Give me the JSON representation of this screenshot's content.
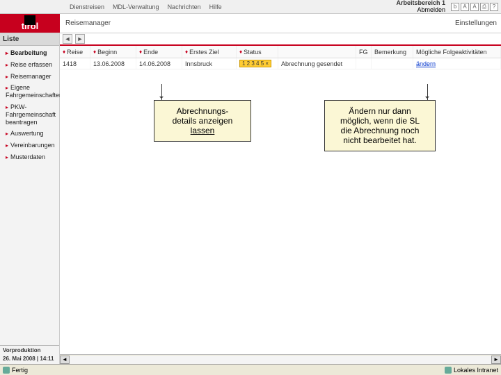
{
  "topnav": {
    "items": [
      "Dienstreisen",
      "MDL-Verwaltung",
      "Nachrichten",
      "Hilfe"
    ],
    "workspace_line1": "Arbeitsbereich 1",
    "workspace_line2": "Abmelden",
    "settings": "Einstellungen"
  },
  "logo": {
    "text": "tirol"
  },
  "breadcrumb": {
    "text": "Reisemanager"
  },
  "sidebar": {
    "header": "Liste",
    "items": [
      "Bearbeitung",
      "Reise erfassen",
      "Reisemanager",
      "Eigene Fahrgemeinschaften",
      "PKW-Fahrgemeinschaft beantragen",
      "Auswertung",
      "Vereinbarungen",
      "Musterdaten"
    ],
    "footer1": "Vorproduktion",
    "footer2": "26. Mai 2008 | 14:11"
  },
  "table": {
    "columns": {
      "reise": "Reise",
      "beginn": "Beginn",
      "ende": "Ende",
      "ziel": "Erstes Ziel",
      "status": "Status",
      "fg": "FG",
      "bem": "Bemerkung",
      "activ": "Mögliche Folgeaktivitäten"
    },
    "row": {
      "reise": "1418",
      "beginn": "13.06.2008",
      "ende": "14.06.2008",
      "ziel": "Innsbruck",
      "status_badge": "1 2 3 4 5 ×",
      "status_text": "Abrechnung gesendet",
      "action": "ändern"
    }
  },
  "callouts": {
    "c1": "Abrechnungs- details anzeigen lassen",
    "c1_l1": "Abrechnungs-",
    "c1_l2": "details anzeigen",
    "c1_l3": "lassen",
    "c2_l1": "Ändern nur dann",
    "c2_l2": "möglich, wenn die SL",
    "c2_l3": "die Abrechnung noch",
    "c2_l4": "nicht bearbeitet hat."
  },
  "statusbar": {
    "left": "Fertig",
    "right": "Lokales Intranet"
  },
  "colors": {
    "brand_red": "#c7001e",
    "callout_bg": "#fbf7d5",
    "badge_bg": "#ffcc33"
  }
}
